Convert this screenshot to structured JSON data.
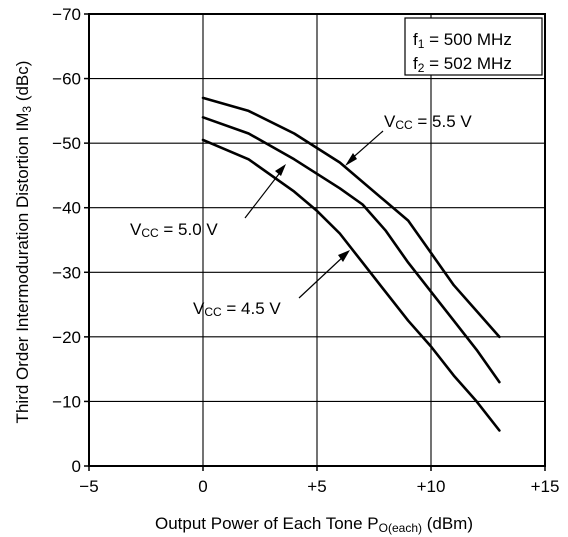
{
  "chart_data": {
    "type": "line",
    "title": "",
    "xlabel": {
      "main": "Output Power of Each Tone  P",
      "sub": "O(each)",
      "unit": " (dBm)"
    },
    "ylabel": {
      "main": "Third Order Intermoduration Distortion  IM",
      "sub": "3",
      "unit": " (dBc)"
    },
    "xlim": [
      -5,
      15
    ],
    "ylim": [
      0,
      -70
    ],
    "x_ticks": [
      "−5",
      "0",
      "+5",
      "+10",
      "+15"
    ],
    "x_tick_values": [
      -5,
      0,
      5,
      10,
      15
    ],
    "y_ticks": [
      "0",
      "−10",
      "−20",
      "−30",
      "−40",
      "−50",
      "−60",
      "−70"
    ],
    "y_tick_values": [
      0,
      -10,
      -20,
      -30,
      -40,
      -50,
      -60,
      -70
    ],
    "grid": true,
    "legend_box": [
      {
        "pre": "f",
        "sub": "1",
        "post": " = 500 MHz"
      },
      {
        "pre": "f",
        "sub": "2",
        "post": " = 502 MHz"
      }
    ],
    "series": [
      {
        "name": "VCC = 5.5 V",
        "label": {
          "pre": "V",
          "sub": "CC",
          "post": " = 5.5 V"
        },
        "x": [
          0,
          2,
          4,
          6,
          8,
          9,
          10,
          11,
          12,
          13
        ],
        "y": [
          -57,
          -55,
          -51.5,
          -47,
          -41,
          -38,
          -33,
          -28,
          -24,
          -20
        ]
      },
      {
        "name": "VCC = 5.0 V",
        "label": {
          "pre": "V",
          "sub": "CC",
          "post": " = 5.0 V"
        },
        "x": [
          0,
          2,
          4,
          6,
          7,
          8,
          9,
          10,
          11,
          12,
          13
        ],
        "y": [
          -54,
          -51.5,
          -47.5,
          -43,
          -40.5,
          -36.5,
          -31.5,
          -27,
          -22.5,
          -18,
          -13
        ]
      },
      {
        "name": "VCC = 4.5 V",
        "label": {
          "pre": "V",
          "sub": "CC",
          "post": " = 4.5 V"
        },
        "x": [
          0,
          2,
          4,
          5,
          6,
          7,
          8,
          9,
          10,
          11,
          12,
          13
        ],
        "y": [
          -50.5,
          -47.5,
          -42.5,
          -39.5,
          -36,
          -31.5,
          -27,
          -22.5,
          -18.5,
          -14,
          -10,
          -5.5
        ]
      }
    ]
  }
}
